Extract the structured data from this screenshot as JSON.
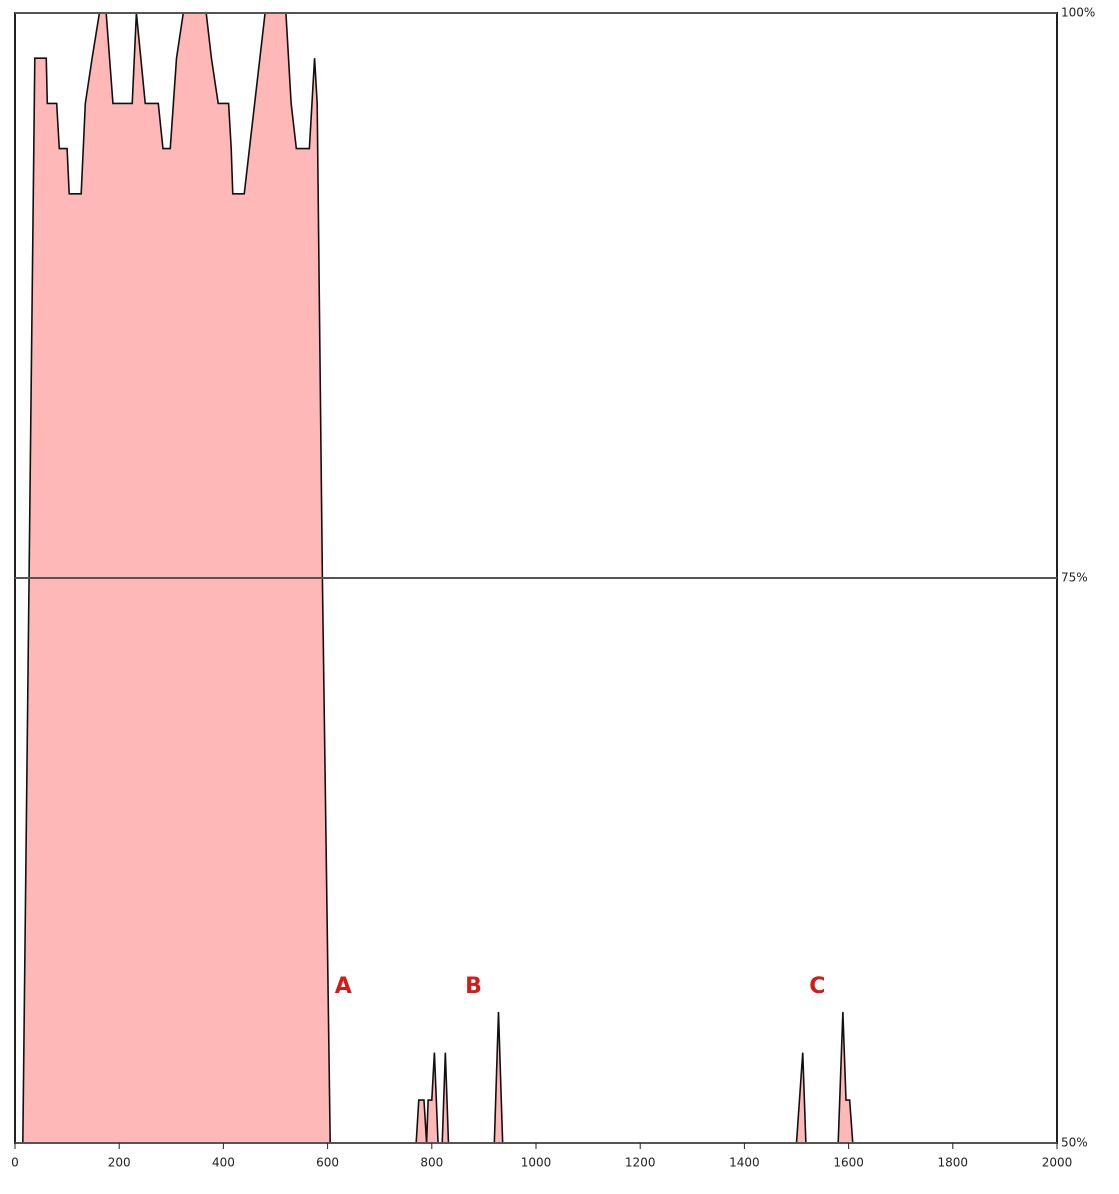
{
  "chart_data": {
    "type": "area",
    "x": [
      0,
      15,
      38,
      60,
      62,
      80,
      85,
      100,
      104,
      127,
      135,
      148,
      162,
      175,
      188,
      225,
      233,
      250,
      275,
      284,
      298,
      310,
      323,
      367,
      377,
      390,
      410,
      415,
      418,
      440,
      450,
      470,
      480,
      520,
      530,
      540,
      565,
      575,
      580,
      590,
      605,
      770,
      775,
      785,
      790,
      793,
      800,
      805,
      812,
      820,
      826,
      832,
      920,
      928,
      936,
      1500,
      1512,
      1518,
      1580,
      1589,
      1595,
      1602,
      1608,
      2000
    ],
    "series": [
      {
        "color": "#ffb8b8",
        "line_color": "#111111",
        "values": [
          50,
          50,
          98,
          98,
          96,
          96,
          94,
          94,
          92,
          92,
          96,
          98,
          100,
          100,
          96,
          96,
          100,
          96,
          96,
          94,
          94,
          98,
          100,
          100,
          98,
          96,
          96,
          94,
          92,
          92,
          94,
          98,
          100,
          100,
          96,
          94,
          94,
          98,
          96,
          75,
          50,
          50,
          51.9,
          51.9,
          50,
          51.9,
          51.9,
          54,
          50,
          50,
          54,
          50,
          50,
          55.8,
          50,
          50,
          54,
          50,
          50,
          55.8,
          51.9,
          51.9,
          50,
          50
        ]
      }
    ],
    "xlim": [
      0,
      2000
    ],
    "xticks": [
      0,
      200,
      400,
      600,
      800,
      1000,
      1200,
      1400,
      1600,
      1800,
      2000
    ],
    "ylim": [
      50,
      100
    ],
    "yticks": [
      {
        "value": 50,
        "label": "50%"
      },
      {
        "value": 75,
        "label": "75%"
      },
      {
        "value": 100,
        "label": "100%"
      }
    ],
    "grid": true,
    "annotations": [
      {
        "text": "A",
        "x": 630,
        "y": 56.9
      },
      {
        "text": "B",
        "x": 880,
        "y": 56.9
      },
      {
        "text": "C",
        "x": 1540,
        "y": 56.9
      }
    ]
  }
}
